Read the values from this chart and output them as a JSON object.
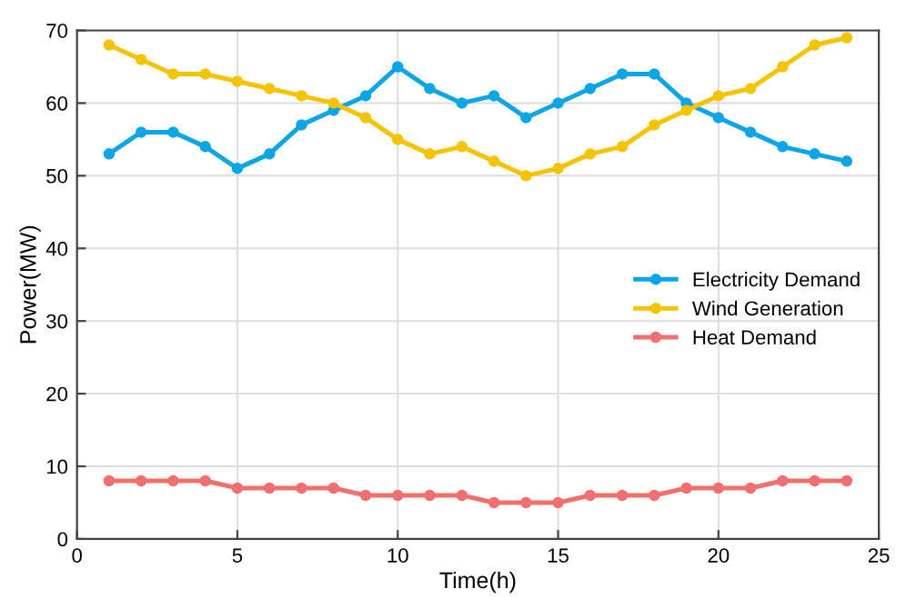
{
  "chart_data": {
    "type": "line",
    "xlabel": "Time(h)",
    "ylabel": "Power(MW)",
    "x": [
      1,
      2,
      3,
      4,
      5,
      6,
      7,
      8,
      9,
      10,
      11,
      12,
      13,
      14,
      15,
      16,
      17,
      18,
      19,
      20,
      21,
      22,
      23,
      24
    ],
    "series": [
      {
        "name": "Electricity Demand",
        "color": "#0ea5e6",
        "values": [
          53,
          56,
          56,
          54,
          51,
          53,
          57,
          59,
          61,
          65,
          62,
          60,
          61,
          58,
          60,
          62,
          64,
          64,
          60,
          58,
          56,
          54,
          53,
          52
        ]
      },
      {
        "name": "Wind Generation",
        "color": "#f5c400",
        "values": [
          68,
          66,
          64,
          64,
          63,
          62,
          61,
          60,
          58,
          55,
          53,
          54,
          52,
          50,
          51,
          53,
          54,
          57,
          59,
          61,
          62,
          65,
          68,
          69
        ]
      },
      {
        "name": "Heat Demand",
        "color": "#f07070",
        "values": [
          8,
          8,
          8,
          8,
          7,
          7,
          7,
          7,
          6,
          6,
          6,
          6,
          5,
          5,
          5,
          6,
          6,
          6,
          7,
          7,
          7,
          8,
          8,
          8
        ]
      }
    ],
    "xlim": [
      0,
      25
    ],
    "xticks": [
      0,
      5,
      10,
      15,
      20,
      25
    ],
    "ylim": [
      0,
      70
    ],
    "yticks": [
      0,
      10,
      20,
      30,
      40,
      50,
      60,
      70
    ],
    "grid": true,
    "legend": "right",
    "marker": "circle",
    "line_style": "solid"
  }
}
